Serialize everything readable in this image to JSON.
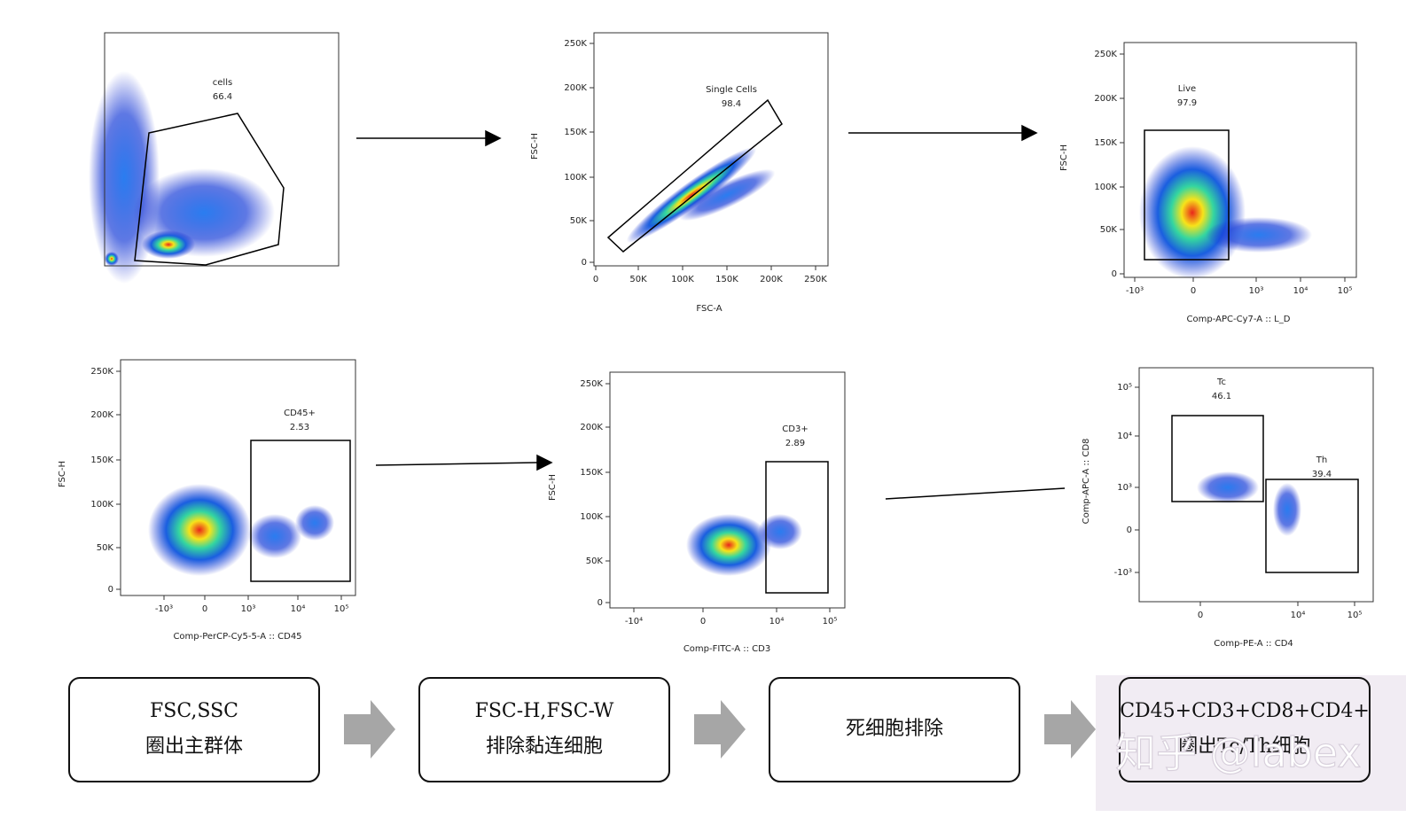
{
  "plots": [
    {
      "gate": {
        "name": "cells",
        "value": 66.4
      }
    },
    {
      "x_label": "FSC-A",
      "y_label": "FSC-H",
      "xticks": [
        "0",
        "50K",
        "100K",
        "150K",
        "200K",
        "250K"
      ],
      "yticks": [
        "0",
        "50K",
        "100K",
        "150K",
        "200K",
        "250K"
      ],
      "gate": {
        "name": "Single Cells",
        "value": 98.4
      }
    },
    {
      "x_label": "Comp-APC-Cy7-A :: L_D",
      "y_label": "FSC-H",
      "xticks": [
        "-10³",
        "0",
        "10³",
        "10⁴",
        "10⁵"
      ],
      "yticks": [
        "0",
        "50K",
        "100K",
        "150K",
        "200K",
        "250K"
      ],
      "gate": {
        "name": "Live",
        "value": 97.9
      }
    },
    {
      "x_label": "Comp-PerCP-Cy5-5-A :: CD45",
      "y_label": "FSC-H",
      "xticks": [
        "-10³",
        "0",
        "10³",
        "10⁴",
        "10⁵"
      ],
      "yticks": [
        "0",
        "50K",
        "100K",
        "150K",
        "200K",
        "250K"
      ],
      "gate": {
        "name": "CD45+",
        "value": 2.53
      }
    },
    {
      "x_label": "Comp-FITC-A :: CD3",
      "y_label": "FSC-H",
      "xticks": [
        "-10⁴",
        "0",
        "10⁴",
        "10⁵"
      ],
      "yticks": [
        "0",
        "50K",
        "100K",
        "150K",
        "200K",
        "250K"
      ],
      "gate": {
        "name": "CD3+",
        "value": 2.89
      }
    },
    {
      "x_label": "Comp-PE-A :: CD4",
      "y_label": "Comp-APC-A :: CD8",
      "xticks": [
        "0",
        "10⁴",
        "10⁵"
      ],
      "yticks": [
        "10⁵",
        "10⁴",
        "10³",
        "0",
        "-10³"
      ],
      "gates": [
        {
          "name": "Tc",
          "value": 46.1
        },
        {
          "name": "Th",
          "value": 39.4
        }
      ]
    }
  ],
  "steps": [
    {
      "lines": [
        "FSC,SSC",
        "圈出主群体"
      ]
    },
    {
      "lines": [
        "FSC-H,FSC-W",
        "排除黏连细胞"
      ]
    },
    {
      "lines": [
        "死细胞排除"
      ]
    },
    {
      "lines": [
        "CD45+CD3+CD8+CD4+",
        "圈出Tc/Th细胞"
      ]
    }
  ],
  "watermark": "知乎 @labex"
}
